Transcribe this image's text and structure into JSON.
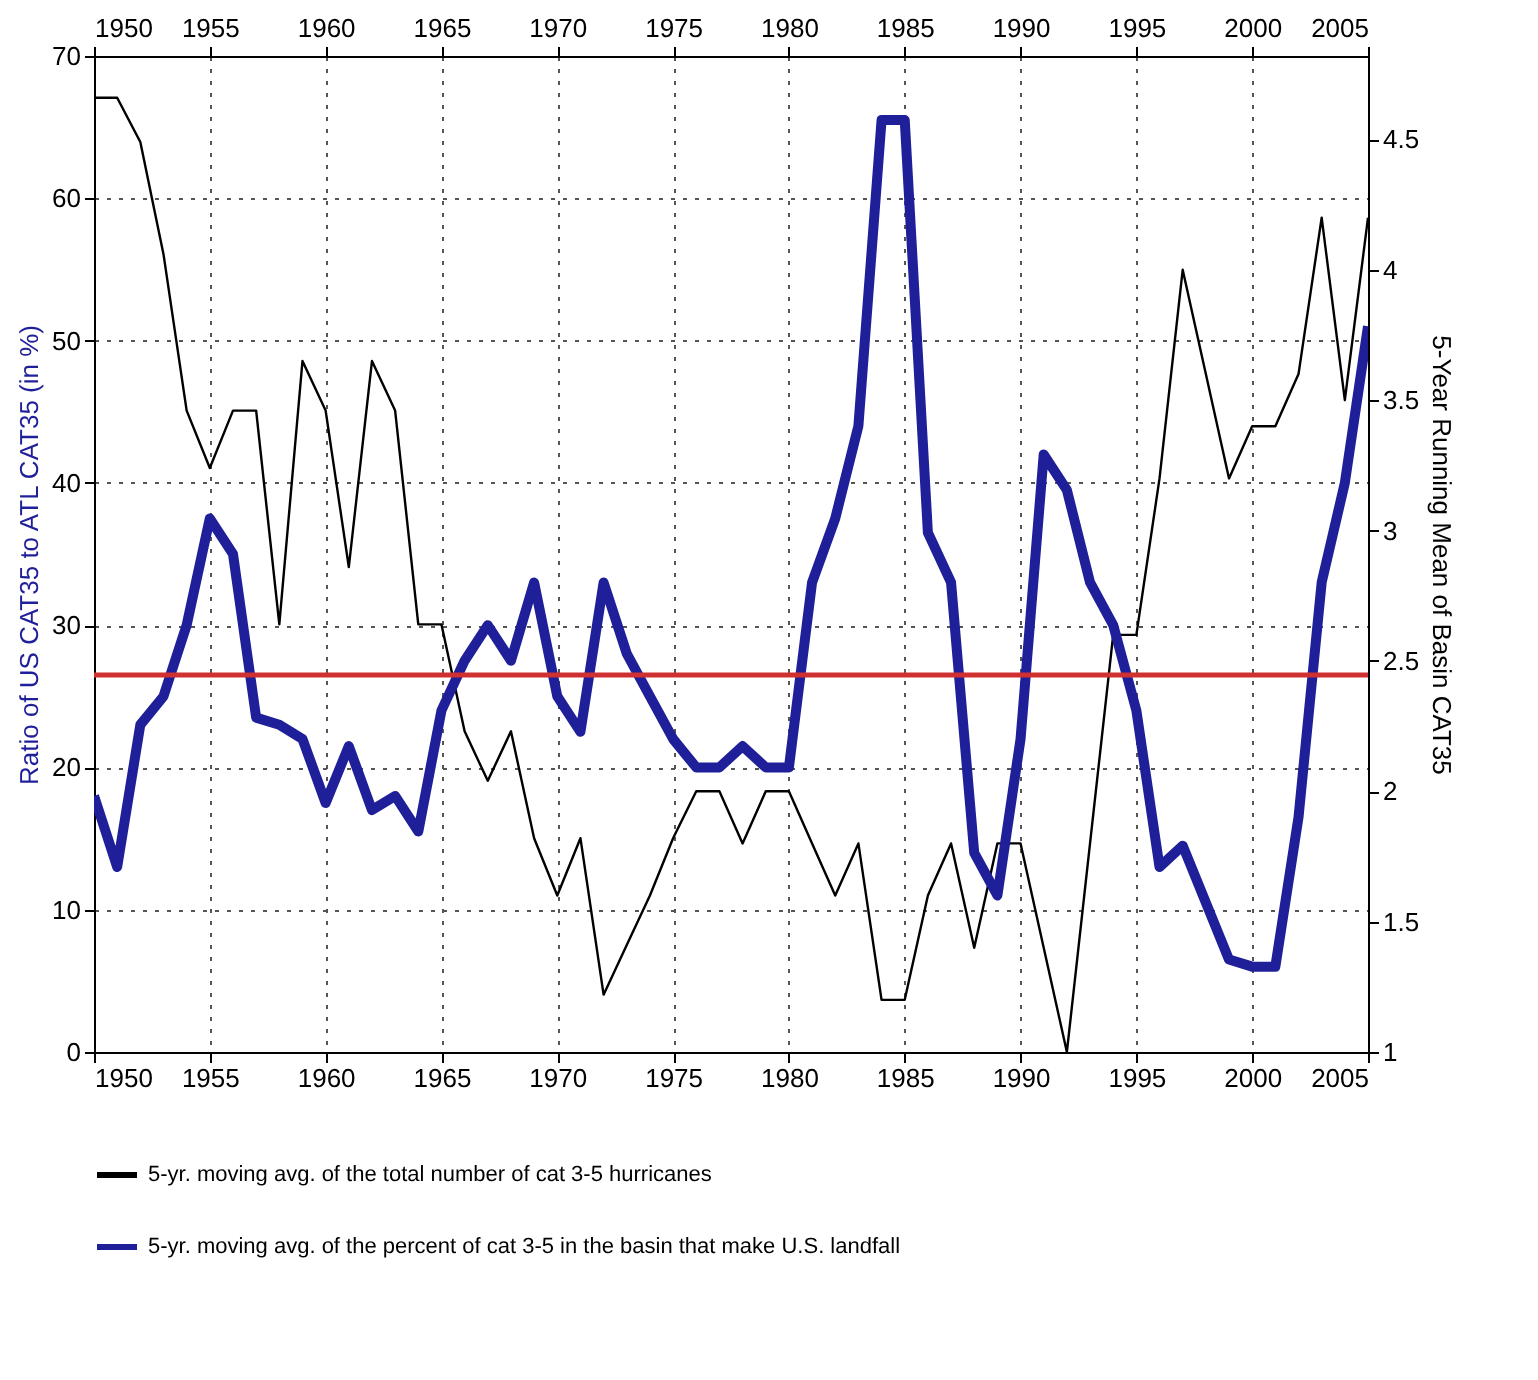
{
  "chart_data": {
    "type": "line",
    "xlabel": null,
    "ylabel": "Ratio of US CAT35 to ATL CAT35 (in %)",
    "y2label": "5-Year Running Mean of Basin CAT35",
    "x": [
      1950,
      1951,
      1952,
      1953,
      1954,
      1955,
      1956,
      1957,
      1958,
      1959,
      1960,
      1961,
      1962,
      1963,
      1964,
      1965,
      1966,
      1967,
      1968,
      1969,
      1970,
      1971,
      1972,
      1973,
      1974,
      1975,
      1976,
      1977,
      1978,
      1979,
      1980,
      1981,
      1982,
      1983,
      1984,
      1985,
      1986,
      1987,
      1988,
      1989,
      1990,
      1991,
      1992,
      1993,
      1994,
      1995,
      1996,
      1997,
      1998,
      1999,
      2000,
      2001,
      2002,
      2003,
      2004,
      2005
    ],
    "series": [
      {
        "name": "5-yr. moving avg. of the total number of cat 3-5 hurricanes",
        "color": "#000000",
        "axis": "y2",
        "values": [
          4.66,
          4.66,
          4.49,
          4.06,
          3.46,
          3.24,
          3.46,
          3.46,
          2.64,
          3.65,
          3.46,
          2.86,
          3.65,
          3.46,
          2.64,
          2.64,
          2.23,
          2.04,
          2.23,
          1.82,
          1.6,
          1.82,
          1.22,
          1.41,
          1.6,
          1.82,
          2.0,
          2.0,
          1.8,
          2.0,
          2.0,
          1.8,
          1.6,
          1.8,
          1.2,
          1.2,
          1.6,
          1.8,
          1.4,
          1.8,
          1.8,
          1.4,
          1.0,
          1.8,
          2.6,
          2.6,
          3.2,
          4.0,
          3.6,
          3.2,
          3.4,
          3.4,
          3.6,
          4.2,
          3.5,
          4.2
        ]
      },
      {
        "name": "5-yr. moving avg. of the percent of cat  3-5 in the basin that make U.S. landfall",
        "color": "#1f1f9a",
        "values": [
          18,
          13,
          23,
          25,
          30,
          37.5,
          35,
          23.5,
          23,
          22,
          17.5,
          21.5,
          17,
          18,
          15.5,
          24,
          27.5,
          30,
          27.5,
          33,
          25,
          22.5,
          33,
          28,
          25,
          22,
          20,
          20,
          21.5,
          20,
          20,
          33,
          37.5,
          44,
          65.5,
          65.5,
          36.5,
          33,
          14,
          11,
          22,
          42,
          39.5,
          33,
          30,
          24,
          13,
          14.5,
          10.5,
          6.5,
          6,
          6,
          16.5,
          33,
          40,
          51
        ]
      }
    ],
    "xlim": [
      1950,
      2005
    ],
    "xticks": [
      1950,
      1955,
      1960,
      1965,
      1970,
      1975,
      1980,
      1985,
      1990,
      1995,
      2000,
      2005
    ],
    "x2lim": [
      1950,
      2005
    ],
    "x2ticks": [
      1950,
      1955,
      1960,
      1965,
      1970,
      1975,
      1980,
      1985,
      1990,
      1995,
      2000,
      2005
    ],
    "ylim": [
      0,
      70
    ],
    "yticks": [
      0,
      10,
      20,
      30,
      40,
      50,
      60,
      70
    ],
    "y2lim": [
      1,
      4.82
    ],
    "y2ticks": [
      1,
      1.5,
      2,
      2.5,
      3,
      3.5,
      4,
      4.5
    ],
    "ref_lines": [
      {
        "axis": "y",
        "value": 26.5,
        "color": "#d03030",
        "line_style": "solid"
      }
    ],
    "grid": true,
    "legend": "bottom",
    "line_style": "solid",
    "marker": "none"
  }
}
